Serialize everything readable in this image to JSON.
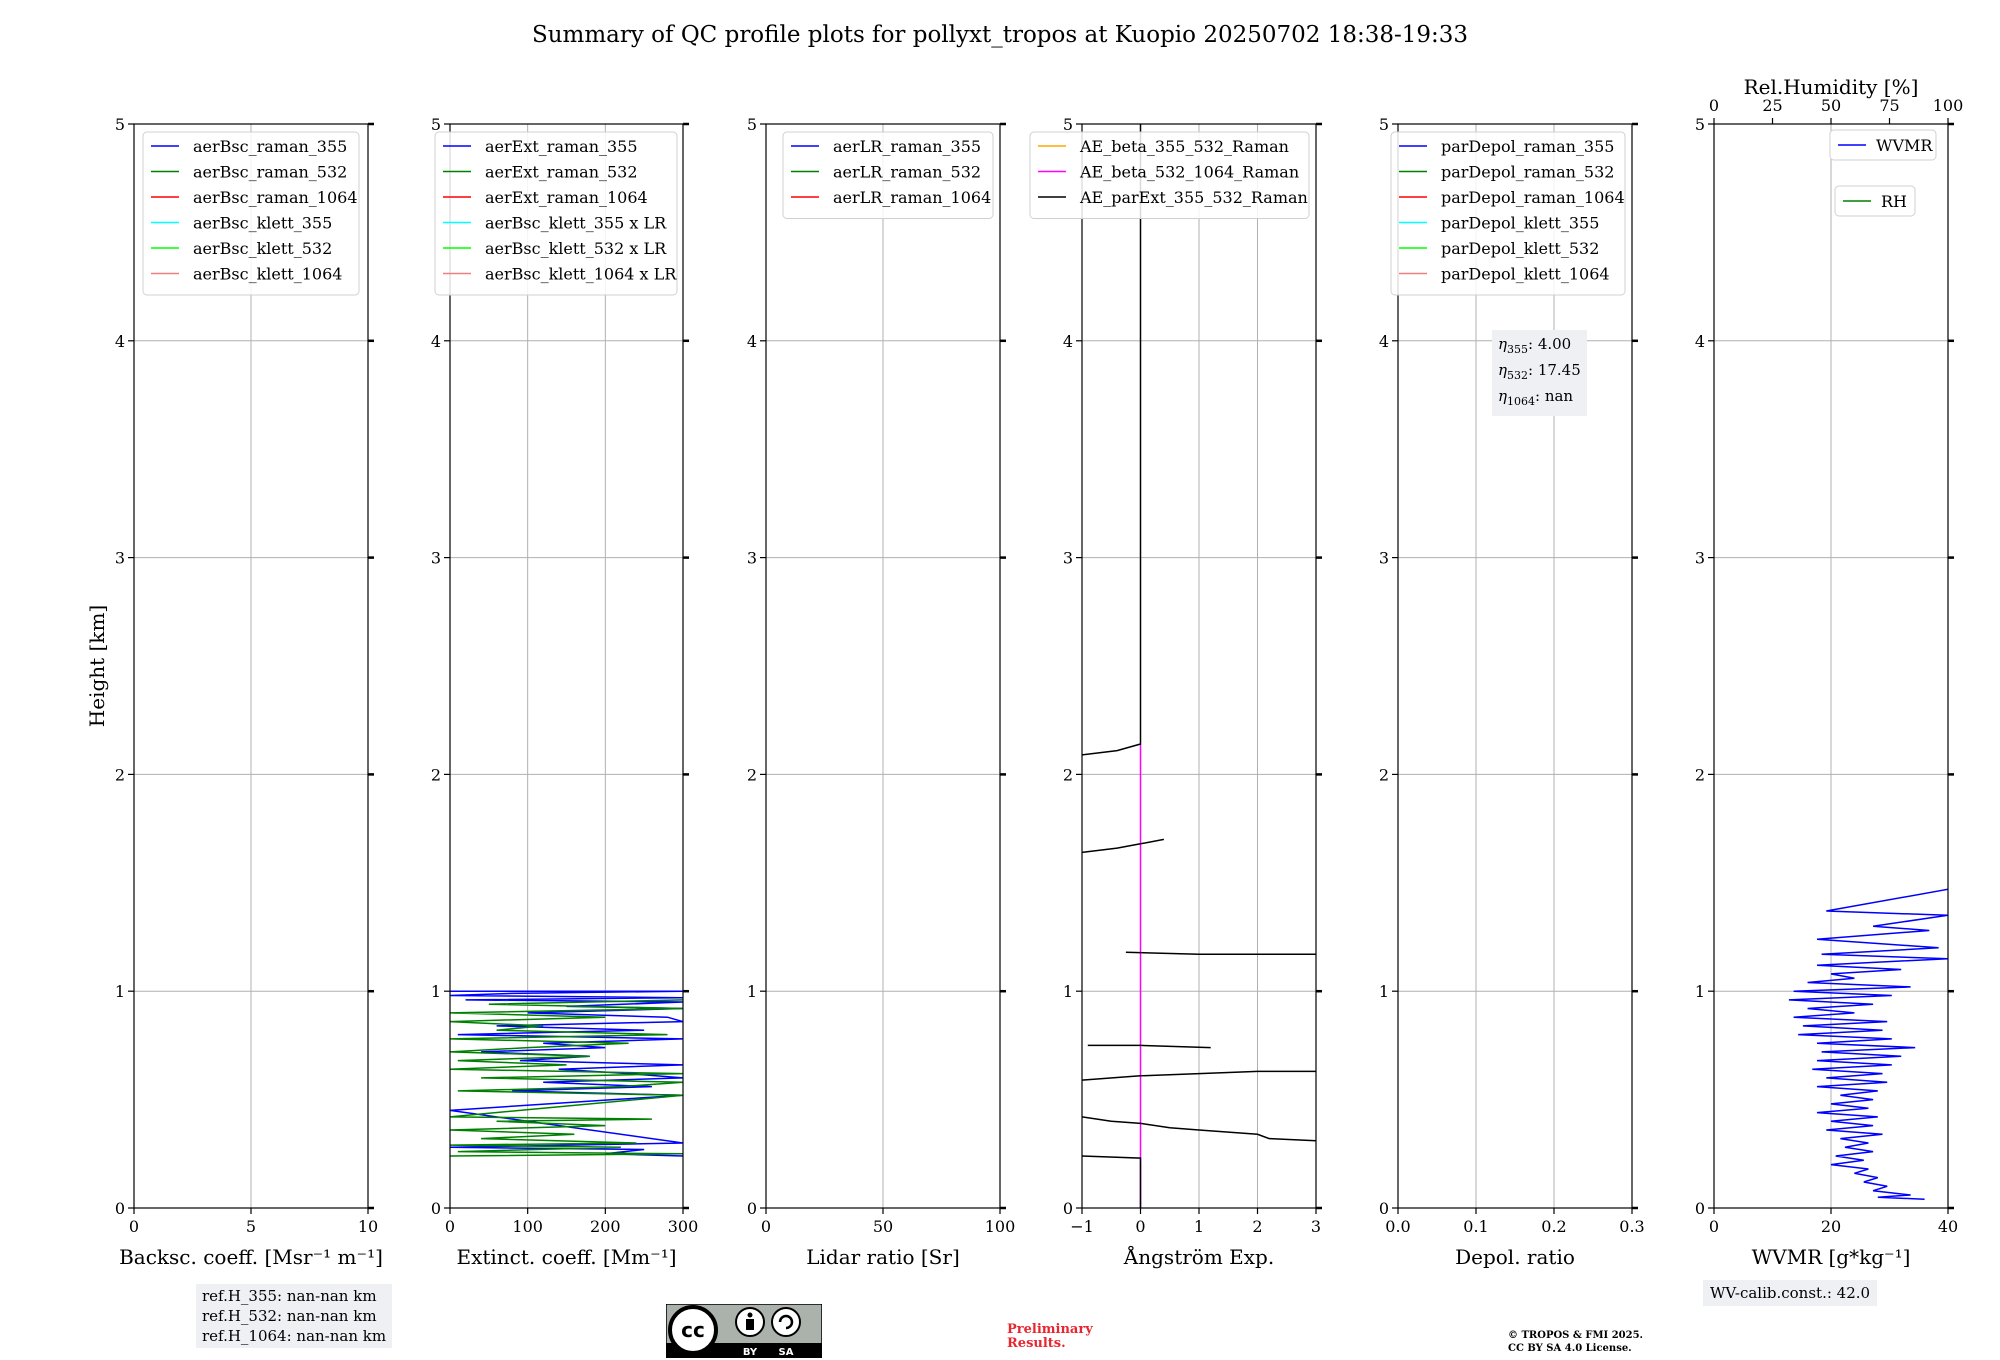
{
  "title": "Summary of QC profile plots for pollyxt_tropos at Kuopio 20250702 18:38-19:33",
  "ref_heights": [
    "ref.H_355: nan-nan km",
    "ref.H_532: nan-nan km",
    "ref.H_1064: nan-nan km"
  ],
  "eta_lines": [
    {
      "sym": "η",
      "sub": "355",
      "val": ": 4.00"
    },
    {
      "sym": "η",
      "sub": "532",
      "val": ": 17.45"
    },
    {
      "sym": "η",
      "sub": "1064",
      "val": ": nan"
    }
  ],
  "wv_calib": "WV-calib.const.: 42.0",
  "license_badge": {
    "cc": "cc",
    "by": "BY",
    "sa": "SA"
  },
  "preliminary": [
    "Preliminary",
    "Results."
  ],
  "copyright": [
    "© TROPOS & FMI 2025.",
    "CC BY SA 4.0 License."
  ],
  "colors": {
    "blue": "#0000ff",
    "green": "#008000",
    "red": "#ff0000",
    "cyan": "#00ffff",
    "lime": "#00ff00",
    "salmon": "#f08080",
    "orange": "#ffa500",
    "magenta": "#ff00ff",
    "black": "#000000"
  },
  "chart_data": [
    {
      "type": "line",
      "xlabel": "Backsc. coeff. [Msr⁻¹ m⁻¹]",
      "ylabel": "Height [km]",
      "xlim": [
        0,
        10
      ],
      "ylim": [
        0,
        5
      ],
      "xticks": [
        "0",
        "5",
        "10"
      ],
      "yticks": [
        "0",
        "1",
        "2",
        "3",
        "4",
        "5"
      ],
      "grid": true,
      "legend": "top-right",
      "series": [
        {
          "name": "aerBsc_raman_355",
          "color": "#0000ff",
          "points": []
        },
        {
          "name": "aerBsc_raman_532",
          "color": "#008000",
          "points": []
        },
        {
          "name": "aerBsc_raman_1064",
          "color": "#ff0000",
          "points": []
        },
        {
          "name": "aerBsc_klett_355",
          "color": "#00ffff",
          "points": []
        },
        {
          "name": "aerBsc_klett_532",
          "color": "#00ff00",
          "points": []
        },
        {
          "name": "aerBsc_klett_1064",
          "color": "#f08080",
          "points": []
        }
      ]
    },
    {
      "type": "line",
      "xlabel": "Extinct. coeff. [Mm⁻¹]",
      "xlim": [
        0,
        300
      ],
      "ylim": [
        0,
        5
      ],
      "xticks": [
        "0",
        "100",
        "200",
        "300"
      ],
      "yticks": [
        "0",
        "1",
        "2",
        "3",
        "4",
        "5"
      ],
      "grid": true,
      "legend": "top-right",
      "series": [
        {
          "name": "aerExt_raman_355",
          "color": "#0000ff",
          "points": [
            [
              0,
              1.0
            ],
            [
              300,
              1.0
            ],
            [
              80,
              0.99
            ],
            [
              0,
              0.98
            ],
            [
              300,
              0.97
            ],
            [
              20,
              0.96
            ],
            [
              300,
              0.95
            ],
            [
              150,
              0.93
            ],
            [
              300,
              0.92
            ],
            [
              100,
              0.9
            ],
            [
              280,
              0.88
            ],
            [
              300,
              0.86
            ],
            [
              60,
              0.84
            ],
            [
              250,
              0.82
            ],
            [
              10,
              0.8
            ],
            [
              300,
              0.78
            ],
            [
              120,
              0.76
            ],
            [
              200,
              0.74
            ],
            [
              40,
              0.72
            ],
            [
              180,
              0.7
            ],
            [
              90,
              0.68
            ],
            [
              300,
              0.66
            ],
            [
              140,
              0.64
            ],
            [
              230,
              0.62
            ],
            [
              300,
              0.6
            ],
            [
              120,
              0.58
            ],
            [
              260,
              0.56
            ],
            [
              80,
              0.54
            ],
            [
              300,
              0.52
            ],
            [
              210,
              0.5
            ],
            [
              0,
              0.45
            ],
            [
              300,
              0.3
            ],
            [
              0,
              0.28
            ],
            [
              250,
              0.27
            ],
            [
              200,
              0.25
            ],
            [
              300,
              0.24
            ]
          ]
        },
        {
          "name": "aerExt_raman_532",
          "color": "#008000",
          "points": [
            [
              300,
              0.96
            ],
            [
              50,
              0.94
            ],
            [
              300,
              0.92
            ],
            [
              0,
              0.9
            ],
            [
              200,
              0.88
            ],
            [
              0,
              0.86
            ],
            [
              120,
              0.84
            ],
            [
              60,
              0.82
            ],
            [
              280,
              0.8
            ],
            [
              0,
              0.78
            ],
            [
              230,
              0.76
            ],
            [
              100,
              0.74
            ],
            [
              0,
              0.72
            ],
            [
              180,
              0.7
            ],
            [
              10,
              0.68
            ],
            [
              150,
              0.66
            ],
            [
              0,
              0.64
            ],
            [
              300,
              0.62
            ],
            [
              40,
              0.6
            ],
            [
              300,
              0.58
            ],
            [
              220,
              0.56
            ],
            [
              10,
              0.54
            ],
            [
              300,
              0.52
            ],
            [
              0,
              0.42
            ],
            [
              260,
              0.41
            ],
            [
              60,
              0.4
            ],
            [
              200,
              0.38
            ],
            [
              0,
              0.36
            ],
            [
              160,
              0.34
            ],
            [
              40,
              0.32
            ],
            [
              240,
              0.3
            ],
            [
              0,
              0.29
            ],
            [
              220,
              0.28
            ],
            [
              10,
              0.26
            ],
            [
              300,
              0.25
            ],
            [
              0,
              0.24
            ]
          ]
        },
        {
          "name": "aerExt_raman_1064",
          "color": "#ff0000",
          "points": []
        },
        {
          "name": "aerBsc_klett_355 x LR",
          "color": "#00ffff",
          "points": []
        },
        {
          "name": "aerBsc_klett_532 x LR",
          "color": "#00ff00",
          "points": []
        },
        {
          "name": "aerBsc_klett_1064 x LR",
          "color": "#f08080",
          "points": []
        }
      ]
    },
    {
      "type": "line",
      "xlabel": "Lidar ratio [Sr]",
      "xlim": [
        0,
        120
      ],
      "ylim": [
        0,
        5
      ],
      "xticks": [
        "0",
        "50",
        "100"
      ],
      "yticks": [
        "0",
        "1",
        "2",
        "3",
        "4",
        "5"
      ],
      "grid": true,
      "legend": "top-right",
      "series": [
        {
          "name": "aerLR_raman_355",
          "color": "#0000ff",
          "points": []
        },
        {
          "name": "aerLR_raman_532",
          "color": "#008000",
          "points": []
        },
        {
          "name": "aerLR_raman_1064",
          "color": "#ff0000",
          "points": []
        }
      ]
    },
    {
      "type": "line",
      "xlabel": "Ångström Exp.",
      "xlim": [
        -1,
        3
      ],
      "ylim": [
        0,
        5
      ],
      "xticks": [
        "−1",
        "0",
        "1",
        "2",
        "3"
      ],
      "yticks": [
        "0",
        "1",
        "2",
        "3",
        "4",
        "5"
      ],
      "grid": true,
      "legend": "top-left",
      "series": [
        {
          "name": "AE_beta_355_532_Raman",
          "color": "#ffa500",
          "points": []
        },
        {
          "name": "AE_beta_532_1064_Raman",
          "color": "#ff00ff",
          "points": [
            [
              0,
              2.14
            ],
            [
              0,
              0.0
            ]
          ]
        },
        {
          "name": "AE_parExt_355_532_Raman",
          "color": "#000000",
          "segments": [
            [
              [
                -1,
                0.24
              ],
              [
                0,
                0.23
              ],
              [
                0,
                0.0
              ]
            ],
            [
              [
                -1,
                0.42
              ],
              [
                -0.5,
                0.4
              ],
              [
                0,
                0.39
              ],
              [
                0.5,
                0.37
              ],
              [
                1,
                0.36
              ],
              [
                1.5,
                0.35
              ],
              [
                2,
                0.34
              ],
              [
                2.2,
                0.32
              ],
              [
                3,
                0.31
              ]
            ],
            [
              [
                -1,
                0.59
              ],
              [
                0,
                0.61
              ],
              [
                1,
                0.62
              ],
              [
                2,
                0.63
              ],
              [
                3,
                0.63
              ]
            ],
            [
              [
                -0.9,
                0.75
              ],
              [
                0,
                0.75
              ],
              [
                1.2,
                0.74
              ]
            ],
            [
              [
                -0.25,
                1.18
              ],
              [
                1,
                1.17
              ],
              [
                3,
                1.17
              ]
            ],
            [
              [
                -1,
                1.64
              ],
              [
                -0.4,
                1.66
              ],
              [
                0,
                1.68
              ],
              [
                0.4,
                1.7
              ]
            ],
            [
              [
                -1,
                2.09
              ],
              [
                -0.4,
                2.11
              ],
              [
                0,
                2.14
              ],
              [
                0,
                5.0
              ]
            ]
          ]
        }
      ]
    },
    {
      "type": "line",
      "xlabel": "Depol. ratio",
      "xlim": [
        0,
        0.3
      ],
      "ylim": [
        0,
        5
      ],
      "xticks": [
        "0.0",
        "0.1",
        "0.2",
        "0.3"
      ],
      "yticks": [
        "0",
        "1",
        "2",
        "3",
        "4",
        "5"
      ],
      "grid": true,
      "legend": "top-right",
      "series": [
        {
          "name": "parDepol_raman_355",
          "color": "#0000ff",
          "points": []
        },
        {
          "name": "parDepol_raman_532",
          "color": "#008000",
          "points": []
        },
        {
          "name": "parDepol_raman_1064",
          "color": "#ff0000",
          "points": []
        },
        {
          "name": "parDepol_klett_355",
          "color": "#00ffff",
          "points": []
        },
        {
          "name": "parDepol_klett_532",
          "color": "#00ff00",
          "points": []
        },
        {
          "name": "parDepol_klett_1064",
          "color": "#f08080",
          "points": []
        }
      ]
    },
    {
      "type": "line",
      "xlabel": "WVMR [g*kg⁻¹]",
      "x2label": "Rel.Humidity [%]",
      "xlim": [
        0,
        50
      ],
      "x2lim": [
        0,
        100
      ],
      "ylim": [
        0,
        5
      ],
      "xticks": [
        "0",
        "20",
        "40"
      ],
      "x2ticks": [
        "0",
        "25",
        "50",
        "75",
        "100"
      ],
      "yticks": [
        "0",
        "1",
        "2",
        "3",
        "4",
        "5"
      ],
      "grid": true,
      "series": [
        {
          "name": "WVMR",
          "color": "#0000ff",
          "points": [
            [
              45,
              0.04
            ],
            [
              35,
              0.05
            ],
            [
              42,
              0.06
            ],
            [
              34,
              0.08
            ],
            [
              37,
              0.1
            ],
            [
              32,
              0.12
            ],
            [
              35,
              0.14
            ],
            [
              30,
              0.16
            ],
            [
              33,
              0.18
            ],
            [
              25,
              0.2
            ],
            [
              32,
              0.22
            ],
            [
              26,
              0.24
            ],
            [
              34,
              0.26
            ],
            [
              28,
              0.28
            ],
            [
              33,
              0.3
            ],
            [
              27,
              0.32
            ],
            [
              36,
              0.34
            ],
            [
              24,
              0.36
            ],
            [
              34,
              0.38
            ],
            [
              25,
              0.4
            ],
            [
              35,
              0.42
            ],
            [
              22,
              0.44
            ],
            [
              33,
              0.46
            ],
            [
              25,
              0.48
            ],
            [
              34,
              0.5
            ],
            [
              27,
              0.52
            ],
            [
              35,
              0.54
            ],
            [
              22,
              0.56
            ],
            [
              37,
              0.58
            ],
            [
              24,
              0.6
            ],
            [
              36,
              0.62
            ],
            [
              21,
              0.64
            ],
            [
              38,
              0.66
            ],
            [
              22,
              0.68
            ],
            [
              40,
              0.7
            ],
            [
              23,
              0.72
            ],
            [
              43,
              0.74
            ],
            [
              22,
              0.76
            ],
            [
              38,
              0.78
            ],
            [
              18,
              0.8
            ],
            [
              36,
              0.82
            ],
            [
              19,
              0.84
            ],
            [
              37,
              0.86
            ],
            [
              17,
              0.88
            ],
            [
              30,
              0.9
            ],
            [
              20,
              0.92
            ],
            [
              34,
              0.94
            ],
            [
              16,
              0.96
            ],
            [
              38,
              0.98
            ],
            [
              17,
              1.0
            ],
            [
              42,
              1.02
            ],
            [
              20,
              1.04
            ],
            [
              30,
              1.06
            ],
            [
              25,
              1.08
            ],
            [
              40,
              1.1
            ],
            [
              22,
              1.12
            ],
            [
              50,
              1.15
            ],
            [
              23,
              1.17
            ],
            [
              48,
              1.2
            ],
            [
              22,
              1.24
            ],
            [
              46,
              1.28
            ],
            [
              34,
              1.3
            ],
            [
              50,
              1.35
            ],
            [
              24,
              1.37
            ],
            [
              50,
              1.47
            ]
          ]
        },
        {
          "name": "RH",
          "color": "#008000",
          "points": []
        }
      ]
    }
  ]
}
